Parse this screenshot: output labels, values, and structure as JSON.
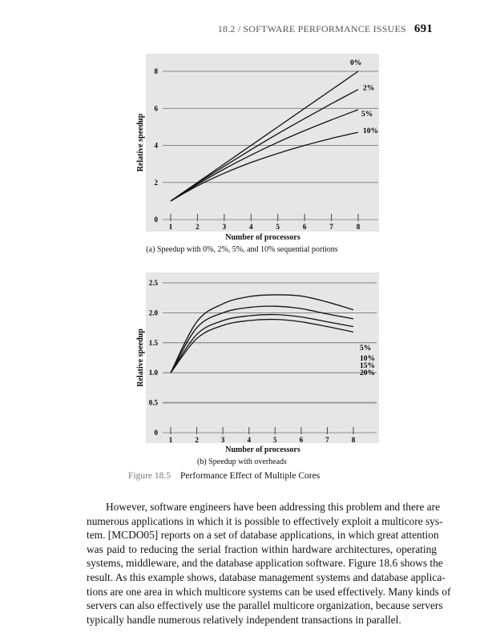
{
  "header": {
    "section": "18.2 / SOFTWARE PERFORMANCE ISSUES",
    "page_number": "691"
  },
  "chart_data": [
    {
      "type": "line",
      "title": "(a) Speedup with 0%, 2%, 5%, and 10% sequential portions",
      "xlabel": "Number of processors",
      "ylabel": "Relative speedup",
      "x": [
        1,
        2,
        3,
        4,
        5,
        6,
        7,
        8
      ],
      "xticks": [
        "1",
        "2",
        "3",
        "4",
        "5",
        "6",
        "7",
        "8"
      ],
      "yticks": [
        "0",
        "2",
        "4",
        "6",
        "8"
      ],
      "ylim": [
        0,
        8
      ],
      "grid": true,
      "series": [
        {
          "name": "0%",
          "values": [
            1.0,
            2.0,
            3.0,
            4.0,
            5.0,
            6.0,
            7.0,
            8.0
          ]
        },
        {
          "name": "2%",
          "values": [
            1.0,
            1.96,
            2.88,
            3.77,
            4.63,
            5.45,
            6.25,
            7.02
          ]
        },
        {
          "name": "5%",
          "values": [
            1.0,
            1.9,
            2.73,
            3.48,
            4.17,
            4.8,
            5.38,
            5.93
          ]
        },
        {
          "name": "10%",
          "values": [
            1.0,
            1.82,
            2.5,
            3.08,
            3.57,
            4.0,
            4.38,
            4.71
          ]
        }
      ]
    },
    {
      "type": "line",
      "title": "(b) Speedup with overheads",
      "xlabel": "Number of processors",
      "ylabel": "Relative speedup",
      "x": [
        1,
        2,
        3,
        4,
        5,
        6,
        7,
        8
      ],
      "xticks": [
        "1",
        "2",
        "3",
        "4",
        "5",
        "6",
        "7",
        "8"
      ],
      "yticks": [
        "0",
        "0.5",
        "1.0",
        "1.5",
        "2.0",
        "2.5"
      ],
      "ylim": [
        0,
        2.5
      ],
      "grid": true,
      "series": [
        {
          "name": "5%",
          "values": [
            1.0,
            1.85,
            2.15,
            2.27,
            2.3,
            2.28,
            2.18,
            2.05
          ]
        },
        {
          "name": "10%",
          "values": [
            1.0,
            1.75,
            2.0,
            2.09,
            2.11,
            2.07,
            1.98,
            1.9
          ]
        },
        {
          "name": "15%",
          "values": [
            1.0,
            1.64,
            1.87,
            1.95,
            1.97,
            1.93,
            1.85,
            1.77
          ]
        },
        {
          "name": "20%",
          "values": [
            1.0,
            1.57,
            1.79,
            1.87,
            1.89,
            1.85,
            1.77,
            1.68
          ]
        }
      ]
    }
  ],
  "figure": {
    "number": "Figure 18.5",
    "title": "Performance Effect of Multiple Cores"
  },
  "body_lines": [
    "However, software engineers have been addressing this problem and there are",
    "numerous applications in which it is possible to effectively exploit a multicore sys-",
    "tem. [MCDO05] reports on a set of database applications, in which great attention",
    "was paid to reducing the serial fraction within hardware architectures, operating",
    "systems, middleware, and the database application software. Figure 18.6 shows the",
    "result. As this example shows, database management systems and database applica-",
    "tions are one area in which multicore systems can be used effectively. Many kinds of",
    "servers can also effectively use the parallel multicore organization, because servers",
    "typically handle numerous relatively independent transactions in parallel."
  ]
}
